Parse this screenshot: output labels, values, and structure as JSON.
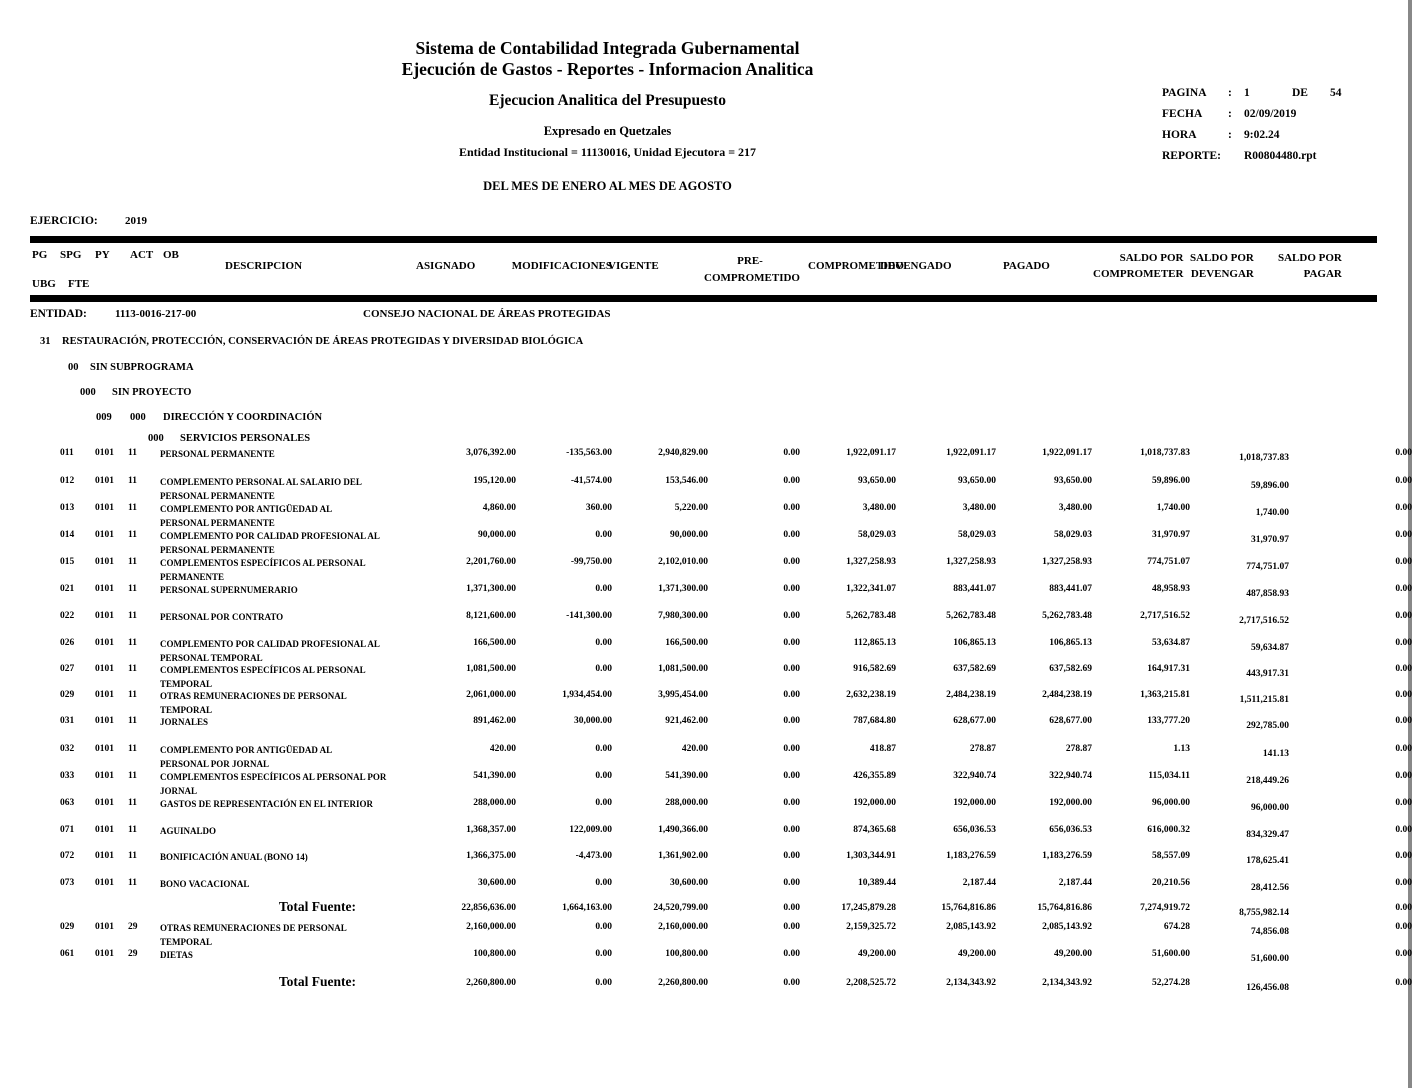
{
  "header": {
    "title1": "Sistema de Contabilidad Integrada Gubernamental",
    "title2": "Ejecución de Gastos - Reportes - Informacion Analitica",
    "title3": "Ejecucion Analitica del Presupuesto",
    "subtitle1": "Expresado en Quetzales",
    "subtitle2": "Entidad Institucional = 11130016, Unidad Ejecutora = 217",
    "period": "DEL MES DE ENERO AL MES DE AGOSTO"
  },
  "meta": {
    "pagina_label": "PAGINA",
    "colon": ":",
    "pagina_value": "1",
    "de_label": "DE",
    "pagina_total": "54",
    "fecha_label": "FECHA",
    "fecha_value": "02/09/2019",
    "hora_label": "HORA",
    "hora_value": "9:02.24",
    "reporte_label": "REPORTE:",
    "reporte_value": "R00804480.rpt",
    "ejercicio_label": "EJERCICIO:",
    "ejercicio_value": "2019"
  },
  "columns": {
    "pg": "PG",
    "spg": "SPG",
    "py": "PY",
    "act": "ACT",
    "ob": "OB",
    "ubg": "UBG",
    "fte": "FTE",
    "descripcion": "DESCRIPCION",
    "asignado": "ASIGNADO",
    "modificaciones": "MODIFICACIONES",
    "vigente": "VIGENTE",
    "pre_line1": "PRE-",
    "pre_line2": "COMPROMETIDO",
    "comprometido": "COMPROMETIDO",
    "devengado": "DEVENGADO",
    "pagado": "PAGADO",
    "saldo_por": "SALDO POR",
    "comprometer": "COMPROMETER",
    "devengar": "DEVENGAR",
    "pagar": "PAGAR"
  },
  "entity": {
    "label": "ENTIDAD:",
    "code": "1113-0016-217-00",
    "name": "CONSEJO NACIONAL DE ÁREAS PROTEGIDAS"
  },
  "hierarchy": {
    "program_code": "31",
    "program_name": "RESTAURACIÓN, PROTECCIÓN, CONSERVACIÓN DE ÁREAS PROTEGIDAS Y DIVERSIDAD BIOLÓGICA",
    "subprogram_code": "00",
    "subprogram_name": "SIN SUBPROGRAMA",
    "project_code": "000",
    "project_name": "SIN PROYECTO",
    "activity_code": "009",
    "activity_code2": "000",
    "activity_name": "DIRECCIÓN Y COORDINACIÓN",
    "group_code": "000",
    "group_name": "SERVICIOS PERSONALES"
  },
  "table": {
    "column_keys": [
      "asignado",
      "modificaciones",
      "vigente",
      "precomprometido",
      "comprometido",
      "devengado",
      "pagado",
      "saldo_comprometer",
      "saldo_devengar",
      "saldo_pagar"
    ],
    "rows": [
      {
        "type": "item",
        "ob": "011",
        "ubg": "0101",
        "fte": "11",
        "desc": [
          "PERSONAL PERMANENTE"
        ],
        "values": [
          "3,076,392.00",
          "-135,563.00",
          "2,940,829.00",
          "0.00",
          "1,922,091.17",
          "1,922,091.17",
          "1,922,091.17",
          "1,018,737.83",
          "1,018,737.83",
          "0.00"
        ]
      },
      {
        "type": "item",
        "ob": "012",
        "ubg": "0101",
        "fte": "11",
        "desc": [
          "COMPLEMENTO PERSONAL AL SALARIO DEL",
          "PERSONAL PERMANENTE"
        ],
        "values": [
          "195,120.00",
          "-41,574.00",
          "153,546.00",
          "0.00",
          "93,650.00",
          "93,650.00",
          "93,650.00",
          "59,896.00",
          "59,896.00",
          "0.00"
        ]
      },
      {
        "type": "item",
        "ob": "013",
        "ubg": "0101",
        "fte": "11",
        "desc": [
          "COMPLEMENTO POR ANTIGÜEDAD AL",
          "PERSONAL PERMANENTE"
        ],
        "values": [
          "4,860.00",
          "360.00",
          "5,220.00",
          "0.00",
          "3,480.00",
          "3,480.00",
          "3,480.00",
          "1,740.00",
          "1,740.00",
          "0.00"
        ]
      },
      {
        "type": "item",
        "ob": "014",
        "ubg": "0101",
        "fte": "11",
        "desc": [
          "COMPLEMENTO POR CALIDAD PROFESIONAL AL",
          "PERSONAL PERMANENTE"
        ],
        "values": [
          "90,000.00",
          "0.00",
          "90,000.00",
          "0.00",
          "58,029.03",
          "58,029.03",
          "58,029.03",
          "31,970.97",
          "31,970.97",
          "0.00"
        ]
      },
      {
        "type": "item",
        "ob": "015",
        "ubg": "0101",
        "fte": "11",
        "desc": [
          "COMPLEMENTOS ESPECÍFICOS AL PERSONAL",
          "PERMANENTE"
        ],
        "values": [
          "2,201,760.00",
          "-99,750.00",
          "2,102,010.00",
          "0.00",
          "1,327,258.93",
          "1,327,258.93",
          "1,327,258.93",
          "774,751.07",
          "774,751.07",
          "0.00"
        ]
      },
      {
        "type": "item",
        "ob": "021",
        "ubg": "0101",
        "fte": "11",
        "desc": [
          "PERSONAL SUPERNUMERARIO"
        ],
        "values": [
          "1,371,300.00",
          "0.00",
          "1,371,300.00",
          "0.00",
          "1,322,341.07",
          "883,441.07",
          "883,441.07",
          "48,958.93",
          "487,858.93",
          "0.00"
        ]
      },
      {
        "type": "item",
        "ob": "022",
        "ubg": "0101",
        "fte": "11",
        "desc": [
          "PERSONAL POR CONTRATO"
        ],
        "values": [
          "8,121,600.00",
          "-141,300.00",
          "7,980,300.00",
          "0.00",
          "5,262,783.48",
          "5,262,783.48",
          "5,262,783.48",
          "2,717,516.52",
          "2,717,516.52",
          "0.00"
        ]
      },
      {
        "type": "item",
        "ob": "026",
        "ubg": "0101",
        "fte": "11",
        "desc": [
          "COMPLEMENTO POR CALIDAD PROFESIONAL AL",
          "PERSONAL TEMPORAL"
        ],
        "values": [
          "166,500.00",
          "0.00",
          "166,500.00",
          "0.00",
          "112,865.13",
          "106,865.13",
          "106,865.13",
          "53,634.87",
          "59,634.87",
          "0.00"
        ]
      },
      {
        "type": "item",
        "ob": "027",
        "ubg": "0101",
        "fte": "11",
        "desc": [
          "COMPLEMENTOS ESPECÍFICOS AL PERSONAL",
          "TEMPORAL"
        ],
        "values": [
          "1,081,500.00",
          "0.00",
          "1,081,500.00",
          "0.00",
          "916,582.69",
          "637,582.69",
          "637,582.69",
          "164,917.31",
          "443,917.31",
          "0.00"
        ]
      },
      {
        "type": "item",
        "ob": "029",
        "ubg": "0101",
        "fte": "11",
        "desc": [
          "OTRAS REMUNERACIONES DE PERSONAL",
          "TEMPORAL"
        ],
        "values": [
          "2,061,000.00",
          "1,934,454.00",
          "3,995,454.00",
          "0.00",
          "2,632,238.19",
          "2,484,238.19",
          "2,484,238.19",
          "1,363,215.81",
          "1,511,215.81",
          "0.00"
        ]
      },
      {
        "type": "item",
        "ob": "031",
        "ubg": "0101",
        "fte": "11",
        "desc": [
          "JORNALES"
        ],
        "values": [
          "891,462.00",
          "30,000.00",
          "921,462.00",
          "0.00",
          "787,684.80",
          "628,677.00",
          "628,677.00",
          "133,777.20",
          "292,785.00",
          "0.00"
        ]
      },
      {
        "type": "item",
        "ob": "032",
        "ubg": "0101",
        "fte": "11",
        "desc": [
          "COMPLEMENTO POR ANTIGÜEDAD AL",
          "PERSONAL POR JORNAL"
        ],
        "values": [
          "420.00",
          "0.00",
          "420.00",
          "0.00",
          "418.87",
          "278.87",
          "278.87",
          "1.13",
          "141.13",
          "0.00"
        ]
      },
      {
        "type": "item",
        "ob": "033",
        "ubg": "0101",
        "fte": "11",
        "desc": [
          "COMPLEMENTOS ESPECÍFICOS AL PERSONAL POR",
          "JORNAL"
        ],
        "values": [
          "541,390.00",
          "0.00",
          "541,390.00",
          "0.00",
          "426,355.89",
          "322,940.74",
          "322,940.74",
          "115,034.11",
          "218,449.26",
          "0.00"
        ]
      },
      {
        "type": "item",
        "ob": "063",
        "ubg": "0101",
        "fte": "11",
        "desc": [
          "GASTOS DE REPRESENTACIÓN EN EL INTERIOR"
        ],
        "values": [
          "288,000.00",
          "0.00",
          "288,000.00",
          "0.00",
          "192,000.00",
          "192,000.00",
          "192,000.00",
          "96,000.00",
          "96,000.00",
          "0.00"
        ]
      },
      {
        "type": "item",
        "ob": "071",
        "ubg": "0101",
        "fte": "11",
        "desc": [
          "AGUINALDO"
        ],
        "values": [
          "1,368,357.00",
          "122,009.00",
          "1,490,366.00",
          "0.00",
          "874,365.68",
          "656,036.53",
          "656,036.53",
          "616,000.32",
          "834,329.47",
          "0.00"
        ]
      },
      {
        "type": "item",
        "ob": "072",
        "ubg": "0101",
        "fte": "11",
        "desc": [
          "BONIFICACIÓN ANUAL (BONO 14)"
        ],
        "values": [
          "1,366,375.00",
          "-4,473.00",
          "1,361,902.00",
          "0.00",
          "1,303,344.91",
          "1,183,276.59",
          "1,183,276.59",
          "58,557.09",
          "178,625.41",
          "0.00"
        ]
      },
      {
        "type": "item",
        "ob": "073",
        "ubg": "0101",
        "fte": "11",
        "desc": [
          "BONO VACACIONAL"
        ],
        "values": [
          "30,600.00",
          "0.00",
          "30,600.00",
          "0.00",
          "10,389.44",
          "2,187.44",
          "2,187.44",
          "20,210.56",
          "28,412.56",
          "0.00"
        ]
      },
      {
        "type": "total",
        "label": "Total Fuente:",
        "values": [
          "22,856,636.00",
          "1,664,163.00",
          "24,520,799.00",
          "0.00",
          "17,245,879.28",
          "15,764,816.86",
          "15,764,816.86",
          "7,274,919.72",
          "8,755,982.14",
          "0.00"
        ]
      },
      {
        "type": "item",
        "ob": "029",
        "ubg": "0101",
        "fte": "29",
        "desc": [
          "OTRAS REMUNERACIONES DE PERSONAL",
          "TEMPORAL"
        ],
        "values": [
          "2,160,000.00",
          "0.00",
          "2,160,000.00",
          "0.00",
          "2,159,325.72",
          "2,085,143.92",
          "2,085,143.92",
          "674.28",
          "74,856.08",
          "0.00"
        ]
      },
      {
        "type": "item",
        "ob": "061",
        "ubg": "0101",
        "fte": "29",
        "desc": [
          "DIETAS"
        ],
        "values": [
          "100,800.00",
          "0.00",
          "100,800.00",
          "0.00",
          "49,200.00",
          "49,200.00",
          "49,200.00",
          "51,600.00",
          "51,600.00",
          "0.00"
        ]
      },
      {
        "type": "total",
        "label": "Total Fuente:",
        "values": [
          "2,260,800.00",
          "0.00",
          "2,260,800.00",
          "0.00",
          "2,208,525.72",
          "2,134,343.92",
          "2,134,343.92",
          "52,274.28",
          "126,456.08",
          "0.00"
        ]
      }
    ]
  }
}
